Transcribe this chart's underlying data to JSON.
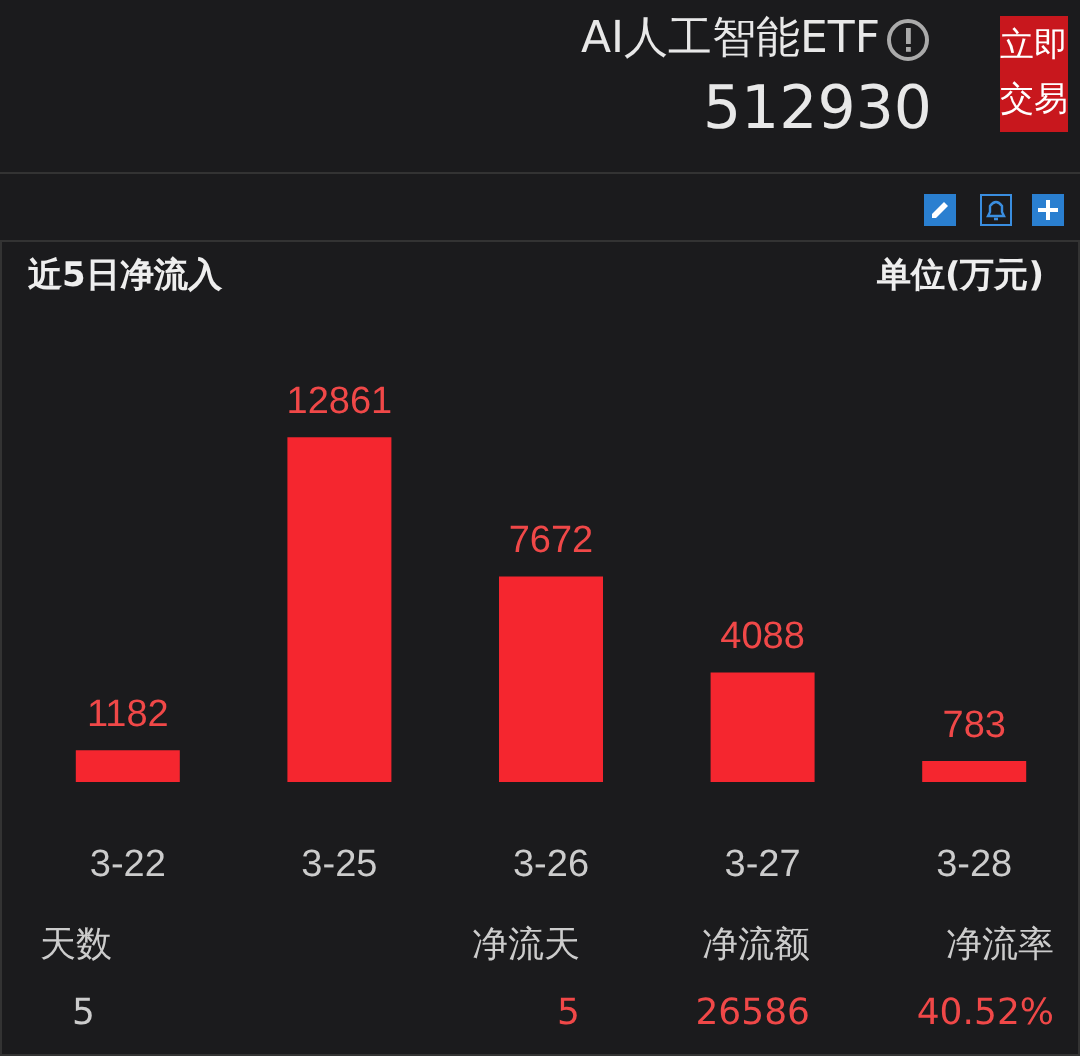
{
  "chart_data": {
    "type": "bar",
    "title": "近5日净流入",
    "ylabel": "单位(万元)",
    "categories": [
      "3-22",
      "3-25",
      "3-26",
      "3-27",
      "3-28"
    ],
    "values": [
      1182,
      12861,
      7672,
      4088,
      783
    ],
    "color": "#f5262f",
    "data_labels": true,
    "annotations": [
      "AI人工智能ETF",
      "512930",
      "立即交易",
      "天数",
      "净流天",
      "净流额",
      "净流率",
      "5",
      "5",
      "26586",
      "40.52%"
    ]
  }
}
